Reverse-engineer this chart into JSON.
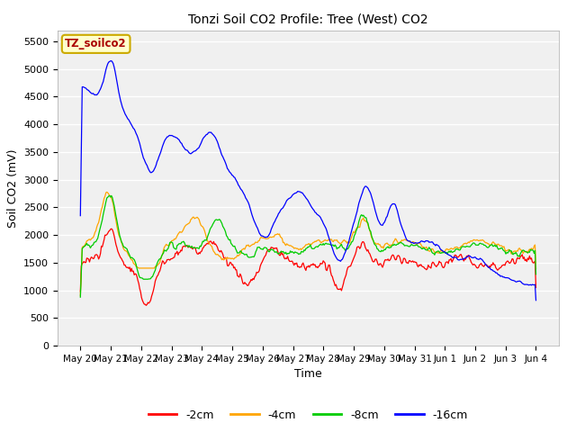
{
  "title": "Tonzi Soil CO2 Profile: Tree (West) CO2",
  "ylabel": "Soil CO2 (mV)",
  "xlabel": "Time",
  "legend_label": "TZ_soilco2",
  "ylim": [
    0,
    5700
  ],
  "yticks": [
    0,
    500,
    1000,
    1500,
    2000,
    2500,
    3000,
    3500,
    4000,
    4500,
    5000,
    5500
  ],
  "series_labels": [
    "-2cm",
    "-4cm",
    "-8cm",
    "-16cm"
  ],
  "series_colors": [
    "#ff0000",
    "#ffa500",
    "#00cc00",
    "#0000ff"
  ],
  "background_color": "#ffffff",
  "plot_bg_color": "#f0f0f0",
  "grid_color": "#ffffff",
  "x_tick_labels": [
    "May 20",
    "May 21",
    "May 22",
    "May 23",
    "May 24",
    "May 25",
    "May 26",
    "May 27",
    "May 28",
    "May 29",
    "May 30",
    "May 31",
    "Jun 1",
    "Jun 2",
    "Jun 3",
    "Jun 4"
  ],
  "n_points": 500
}
